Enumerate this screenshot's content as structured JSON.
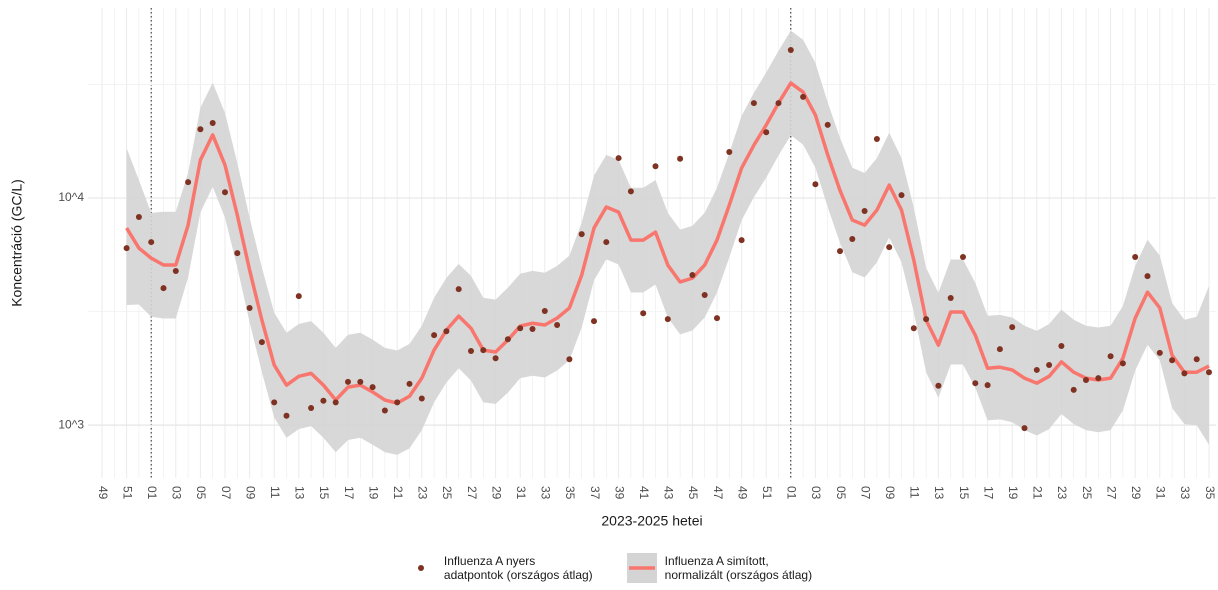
{
  "chart_data": {
    "type": "line",
    "y_axis_title": "Koncentráció (GC/L)",
    "x_axis_title": "2023-2025 hetei",
    "log_scale_y": true,
    "grid": true,
    "legend_position": "bottom",
    "ylim": [
      585,
      68700
    ],
    "yticks": [
      {
        "value": 1000,
        "label": "10^3"
      },
      {
        "value": 10000,
        "label": "10^4"
      }
    ],
    "y_minor_gridlines": [
      3162,
      31623
    ],
    "categories": [
      "49",
      null,
      "51",
      null,
      "01",
      null,
      "03",
      null,
      "05",
      null,
      "07",
      null,
      "09",
      null,
      "11",
      null,
      "13",
      null,
      "15",
      null,
      "17",
      null,
      "19",
      null,
      "21",
      null,
      "23",
      null,
      "25",
      null,
      "27",
      null,
      "29",
      null,
      "31",
      null,
      "33",
      null,
      "35",
      null,
      "37",
      null,
      "39",
      null,
      "41",
      null,
      "43",
      null,
      "45",
      null,
      "47",
      null,
      "49",
      null,
      "51",
      null,
      "01",
      null,
      "03",
      null,
      "05",
      null,
      "07",
      null,
      "09",
      null,
      "11",
      null,
      "13",
      null,
      "15",
      null,
      "17",
      null,
      "19",
      null,
      "21",
      null,
      "23",
      null,
      "25",
      null,
      "27",
      null,
      "29",
      null,
      "31",
      null,
      "33",
      null,
      "35"
    ],
    "series": [
      {
        "name": "Influenza A nyers\n adatpontok (országos átlag)",
        "mark": "point",
        "color": "#7f3222",
        "values": [
          null,
          null,
          6020,
          8250,
          6400,
          4010,
          4770,
          11750,
          20100,
          21400,
          10600,
          5720,
          3280,
          2320,
          1260,
          1100,
          3700,
          1190,
          1280,
          1260,
          1550,
          1550,
          1470,
          1160,
          1260,
          1520,
          1310,
          2490,
          2590,
          3970,
          2120,
          2140,
          1970,
          2390,
          2670,
          2650,
          3180,
          2760,
          1950,
          6940,
          2870,
          6400,
          15000,
          10700,
          3110,
          13800,
          2930,
          14900,
          4580,
          3740,
          2960,
          15950,
          6530,
          26200,
          19500,
          26200,
          44900,
          27900,
          11500,
          21000,
          5840,
          6600,
          8770,
          18200,
          6080,
          10300,
          2670,
          2930,
          1490,
          3630,
          5500,
          1530,
          1500,
          2160,
          2700,
          970,
          1750,
          1840,
          2230,
          1430,
          1580,
          1610,
          2010,
          1870,
          5500,
          4530,
          2080,
          1930,
          1690,
          1950,
          1710
        ]
      },
      {
        "name": "Influenza A simított,\n normalizált (országos átlag)",
        "mark": "line",
        "color": "#f8766d",
        "band_color": "#d4d4d4",
        "values": [
          null,
          null,
          7380,
          6020,
          5440,
          5070,
          5070,
          7600,
          14700,
          18970,
          13970,
          8410,
          4820,
          2900,
          1840,
          1500,
          1640,
          1690,
          1500,
          1290,
          1470,
          1500,
          1400,
          1290,
          1250,
          1340,
          1610,
          2140,
          2620,
          3020,
          2670,
          2140,
          2100,
          2370,
          2730,
          2810,
          2760,
          2960,
          3280,
          4580,
          7380,
          9130,
          8670,
          6530,
          6530,
          7080,
          5070,
          4270,
          4440,
          5070,
          6530,
          9310,
          13550,
          17100,
          20980,
          26200,
          32100,
          29300,
          23200,
          15500,
          10800,
          8000,
          7600,
          8850,
          11400,
          8850,
          5330,
          2900,
          2250,
          3150,
          3150,
          2490,
          1780,
          1800,
          1750,
          1610,
          1530,
          1640,
          1900,
          1710,
          1610,
          1580,
          1610,
          1970,
          2960,
          3850,
          3280,
          2030,
          1710,
          1710,
          1820
        ],
        "lower": [
          null,
          null,
          3380,
          3400,
          3000,
          2950,
          2950,
          4470,
          8650,
          11200,
          8200,
          4950,
          2840,
          1710,
          1080,
          880,
          960,
          990,
          880,
          760,
          860,
          880,
          820,
          760,
          740,
          790,
          950,
          1260,
          1540,
          1780,
          1570,
          1260,
          1240,
          1390,
          1610,
          1650,
          1620,
          1740,
          1930,
          2690,
          4340,
          5370,
          5100,
          3840,
          3840,
          4160,
          2980,
          2510,
          2610,
          2980,
          3840,
          5480,
          7970,
          10100,
          12300,
          15400,
          18900,
          17200,
          13600,
          9120,
          6350,
          4710,
          4470,
          5210,
          6710,
          5210,
          3140,
          1710,
          1320,
          1850,
          1850,
          1460,
          1050,
          1060,
          1030,
          950,
          900,
          960,
          1120,
          1010,
          950,
          930,
          950,
          1160,
          1740,
          2260,
          1930,
          1190,
          1010,
          1000,
          820
        ],
        "upper": [
          null,
          null,
          16600,
          12000,
          8600,
          8700,
          8700,
          12900,
          25000,
          32200,
          23700,
          14300,
          8190,
          4930,
          3130,
          2550,
          2790,
          2870,
          2550,
          2190,
          2500,
          2550,
          2380,
          2190,
          2130,
          2280,
          2740,
          3640,
          4450,
          5130,
          4540,
          3640,
          3570,
          4030,
          4640,
          4780,
          4690,
          5030,
          5580,
          7790,
          12550,
          15500,
          14700,
          11100,
          11100,
          12000,
          8620,
          7260,
          7550,
          8620,
          11100,
          15800,
          23000,
          29100,
          35700,
          44500,
          54600,
          49800,
          39400,
          26400,
          18400,
          13600,
          12900,
          15000,
          19400,
          15000,
          9060,
          4930,
          3830,
          5360,
          5360,
          4230,
          3030,
          3060,
          2980,
          2740,
          2600,
          2790,
          3230,
          2910,
          2740,
          2690,
          2740,
          3350,
          5030,
          6550,
          5580,
          3450,
          2910,
          3000,
          4100
        ]
      }
    ]
  }
}
